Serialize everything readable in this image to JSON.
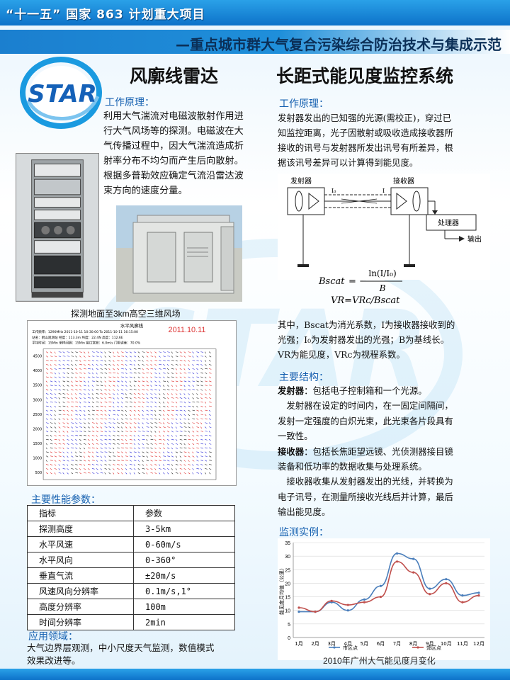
{
  "header": {
    "project": "“十一五”  国家 863 计划重大项目",
    "subtitle": "—重点城市群大气复合污染综合防治技术与集成示范"
  },
  "logo": {
    "text": "STAR",
    "ring_color": "#1a9ae0",
    "text_color": "#1561b8"
  },
  "left": {
    "title": "风廓线雷达",
    "principle_label": "工作原理：",
    "principle_lines": [
      "利用大气湍流对电磁波散射作用进",
      "行大气风场等的探测。电磁波在大",
      "气传播过程中，因大气湍流造成折",
      "射率分布不均匀而产生后向散射。",
      "根据多普勒效应确定气流沿雷达波",
      "束方向的速度分量。"
    ],
    "wind_caption": "探测地面至3km高空三维风场",
    "wind_plot": {
      "title": "水平风廓线",
      "date_stamp": "2011.10.11",
      "info_row1": "工作频率：1290MHz   2011-10-11 10:30:00 To 2011-10-11 16:15:00",
      "info_row2": "站名：鹤山观测站    经度：113.3m    纬度：22.4N   高度：112.6E",
      "info_row3": "平均时间：15Min     采样间隔：15Min    窗口宽度：6.0m/s   门限误差：70.0%"
    },
    "params_label": "主要性能参数：",
    "params_table": {
      "headers": [
        "指标",
        "参数"
      ],
      "rows": [
        [
          "探测高度",
          "3-5km"
        ],
        [
          "水平风速",
          "0-60m/s"
        ],
        [
          "水平风向",
          "0-360°"
        ],
        [
          "垂直气流",
          "±20m/s"
        ],
        [
          "风速风向分辨率",
          "0.1m/s,1°"
        ],
        [
          "高度分辨率",
          "100m"
        ],
        [
          "时间分辨率",
          "2min"
        ]
      ]
    },
    "application_label": "应用领域：",
    "application_lines": [
      "大气边界层观测，中小尺度天气监测，数值模式",
      "效果改进等。"
    ]
  },
  "right": {
    "title": "长距式能见度监控系统",
    "principle_label": "工作原理：",
    "principle_lines": [
      "发射器发出的已知强的光源(需校正)，穿过已",
      "知监控距离，光子因散射或吸收造成接收器所",
      "接收的讯号与发射器所发出讯号有所差异，根",
      "据该讯号差异可以计算得到能见度。"
    ],
    "diagram": {
      "transmitter": "发射器",
      "receiver": "接收器",
      "processor": "处理器",
      "output": "输出",
      "i0": "I₀",
      "i": "I"
    },
    "formula": {
      "lhs": "Bscat",
      "numerator": "ln(I/I₀)",
      "denominator": "B",
      "line2": "VR=VRc/Bscat"
    },
    "explain_lines": [
      "其中，Bscat为消光系数，I为接收器接收到的",
      "光强；I₀为发射器发出的光强；B为基线长。",
      "VR为能见度，VRc为视程系数。"
    ],
    "structure_label": "主要结构：",
    "structure_lines": [
      {
        "bold": "发射器",
        "text": "：包括电子控制箱和一个光源。"
      },
      {
        "bold": "",
        "text": "　发射器在设定的时间内，在一固定间隔间，"
      },
      {
        "bold": "",
        "text": "发射一定强度的白炽光束，此光束各片段具有"
      },
      {
        "bold": "",
        "text": "一致性。"
      },
      {
        "bold": "接收器",
        "text": "：包括长焦距望远镜、光侦测器接目镜"
      },
      {
        "bold": "",
        "text": "装备和低功率的数据收集与处理系统。"
      },
      {
        "bold": "",
        "text": "　接收器收集从发射器发出的光线，并转换为"
      },
      {
        "bold": "",
        "text": "电子讯号，在测量所接收光线后并计算，最后"
      },
      {
        "bold": "",
        "text": "输出能见度。"
      }
    ],
    "example_label": "监测实例："
  },
  "chart_data": {
    "type": "line",
    "title": "2010年广州大气能见度月变化",
    "ylabel": "能见度月均值（公里）",
    "xlabel": "",
    "categories": [
      "1月",
      "2月",
      "3月",
      "4月",
      "5月",
      "6月",
      "7月",
      "8月",
      "9月",
      "10月",
      "11月",
      "12月"
    ],
    "ylim": [
      0,
      35
    ],
    "yticks": [
      0,
      5,
      10,
      15,
      20,
      25,
      30,
      35
    ],
    "series": [
      {
        "name": "市区点",
        "color": "#4a7ebb",
        "values": [
          9.5,
          9.5,
          13,
          10,
          14,
          19,
          31,
          29,
          18,
          21.5,
          15.5,
          16.5
        ]
      },
      {
        "name": "郊区点",
        "color": "#c0504d",
        "values": [
          11,
          9.5,
          13.5,
          12,
          13,
          15,
          28,
          24,
          16,
          20,
          13,
          15.5
        ]
      }
    ],
    "legend": "bottom"
  }
}
